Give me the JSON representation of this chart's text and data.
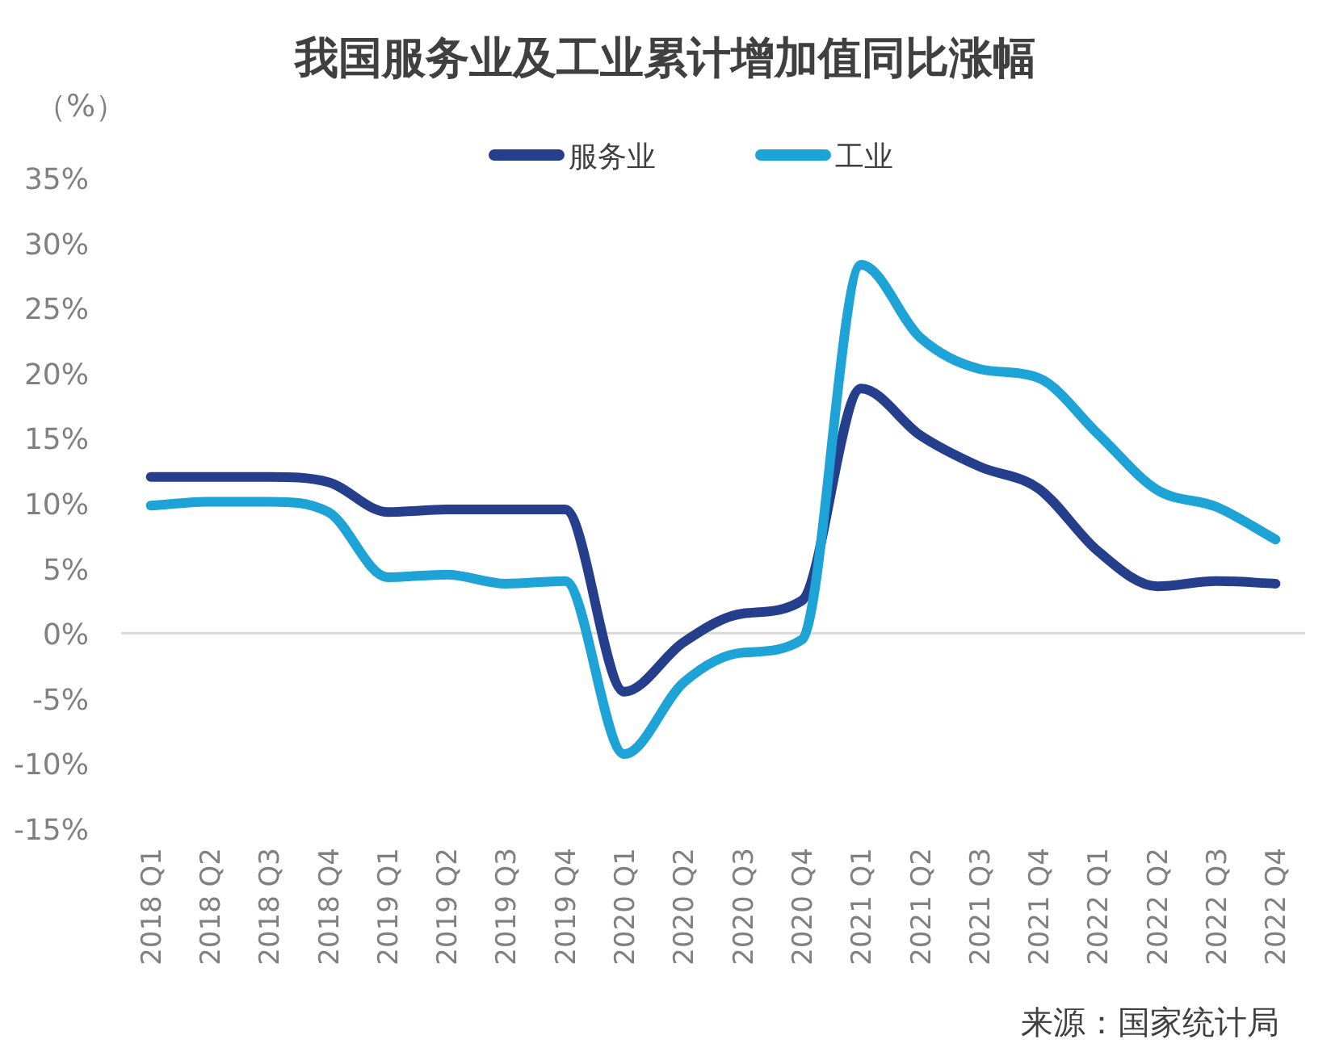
{
  "chart_data": {
    "type": "line",
    "title": "我国服务业及工业累计增加值同比涨幅",
    "ylabel": "（%）",
    "categories": [
      "2018 Q1",
      "2018 Q2",
      "2018 Q3",
      "2018 Q4",
      "2019 Q1",
      "2019 Q2",
      "2019 Q3",
      "2019 Q4",
      "2020 Q1",
      "2020 Q2",
      "2020 Q3",
      "2020 Q4",
      "2021 Q1",
      "2021 Q2",
      "2021 Q3",
      "2021 Q4",
      "2022 Q1",
      "2022 Q2",
      "2022 Q3",
      "2022 Q4"
    ],
    "series": [
      {
        "name": "服务业",
        "color": "#263f8c",
        "values": [
          12.0,
          12.0,
          12.0,
          11.6,
          9.3,
          9.5,
          9.5,
          9.5,
          -4.5,
          -0.7,
          1.5,
          2.5,
          18.8,
          15.2,
          12.8,
          11.1,
          6.3,
          3.6,
          4.0,
          3.8
        ]
      },
      {
        "name": "工业",
        "color": "#1ea3d6",
        "values": [
          9.8,
          10.1,
          10.1,
          9.3,
          4.3,
          4.5,
          3.8,
          4.0,
          -9.3,
          -3.8,
          -1.5,
          -0.5,
          28.3,
          22.7,
          20.3,
          19.6,
          15.3,
          11.0,
          9.7,
          7.2
        ]
      }
    ],
    "ylim": [
      -15,
      35
    ],
    "yticks": [
      {
        "value": -15,
        "label": "-15%"
      },
      {
        "value": -10,
        "label": "-10%"
      },
      {
        "value": -5,
        "label": "-5%"
      },
      {
        "value": 0,
        "label": "0%"
      },
      {
        "value": 5,
        "label": "5%"
      },
      {
        "value": 10,
        "label": "10%"
      },
      {
        "value": 15,
        "label": "15%"
      },
      {
        "value": 20,
        "label": "20%"
      },
      {
        "value": 25,
        "label": "25%"
      },
      {
        "value": 30,
        "label": "30%"
      },
      {
        "value": 35,
        "label": "35%"
      }
    ],
    "ref_lines": [
      {
        "axis": "y",
        "value": 0,
        "color": "#d9d9d9"
      }
    ],
    "legend": "top",
    "line_style": "solid",
    "marker": "none",
    "annotations": [
      "来源：国家统计局"
    ]
  }
}
